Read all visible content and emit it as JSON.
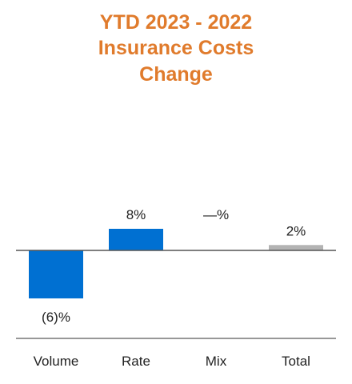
{
  "chart_data": {
    "type": "bar",
    "title": "YTD 2023 - 2022 Insurance Costs Change",
    "title_lines": [
      "YTD 2023 - 2022",
      "Insurance Costs",
      "Change"
    ],
    "categories": [
      "Volume",
      "Rate",
      "Mix",
      "Total"
    ],
    "values": [
      -6,
      8,
      0,
      2
    ],
    "value_labels": [
      "(6)%",
      "8%",
      "—%",
      "2%"
    ],
    "colors": [
      "#0070d2",
      "#0070d2",
      "#0070d2",
      "#b3b3b3"
    ],
    "title_color": "#e07b2c",
    "xlabel": "",
    "ylabel": "",
    "ylim": [
      -10,
      10
    ],
    "grid": false
  }
}
